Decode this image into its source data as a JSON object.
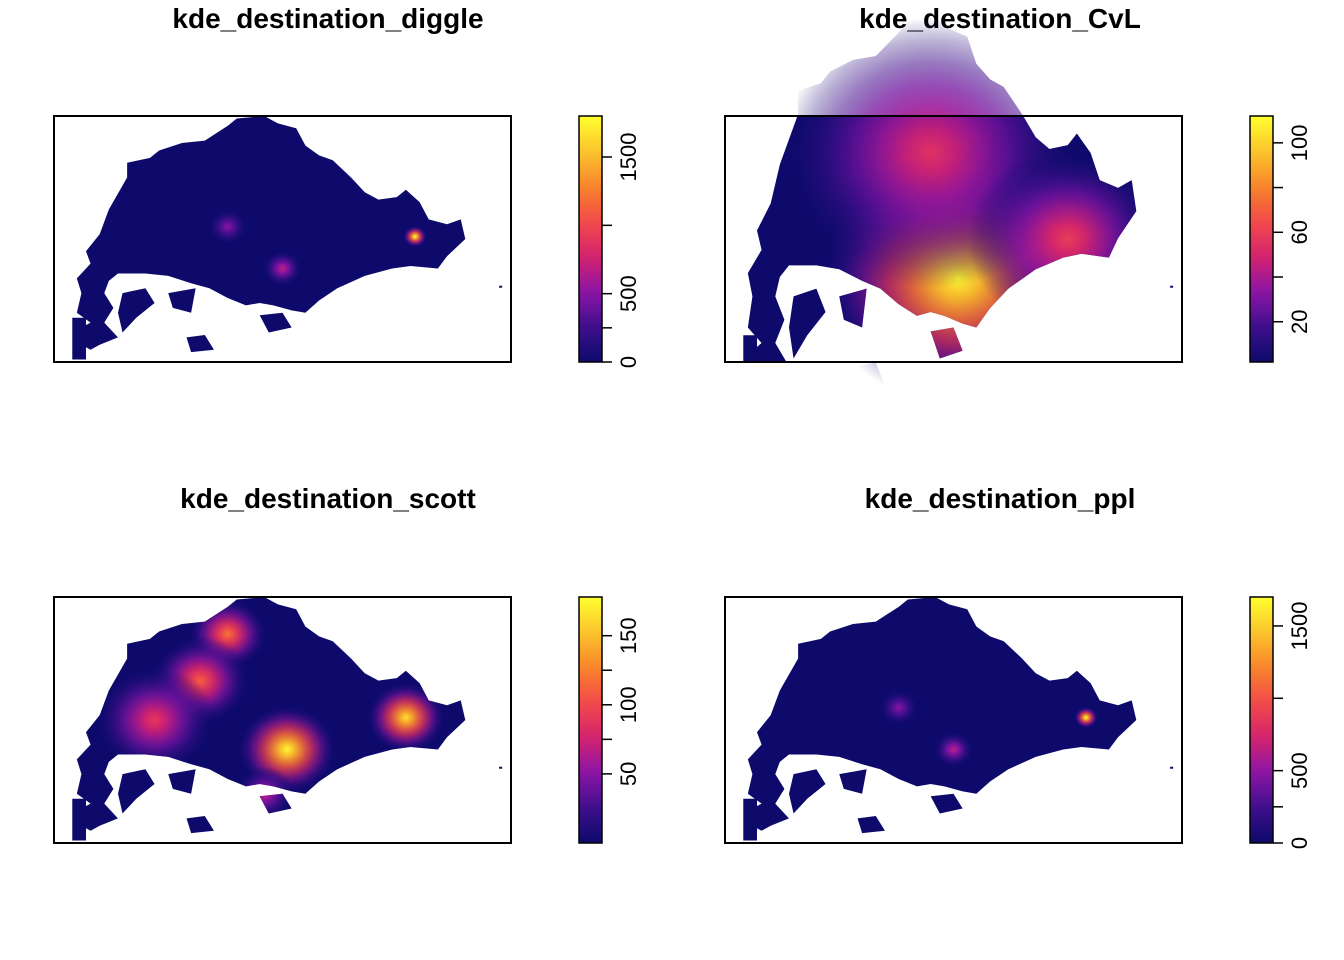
{
  "chart_data": [
    {
      "type": "heatmap",
      "title": "kde_destination_diggle",
      "legend_ticks": [
        0,
        500,
        1500
      ],
      "scale_range": [
        0,
        1800
      ],
      "color_palette": [
        "#0d0a6b",
        "#3e0f8c",
        "#8b14a6",
        "#d5236e",
        "#f24a4a",
        "#f8852a",
        "#fbc52d",
        "#ffff2e"
      ],
      "hotspots": [
        {
          "cx": 0.79,
          "cy": 0.49,
          "value": 1800,
          "spread": 0.012
        },
        {
          "cx": 0.5,
          "cy": 0.62,
          "value": 700,
          "spread": 0.02
        },
        {
          "cx": 0.38,
          "cy": 0.45,
          "value": 500,
          "spread": 0.02
        }
      ]
    },
    {
      "type": "heatmap",
      "title": "kde_destination_CvL",
      "legend_ticks": [
        20,
        60,
        100
      ],
      "scale_range": [
        2,
        112
      ],
      "color_palette": [
        "#0d0a6b",
        "#3e0f8c",
        "#8b14a6",
        "#d5236e",
        "#f24a4a",
        "#f8852a",
        "#fbc52d",
        "#ffff2e"
      ],
      "hotspots": [
        {
          "cx": 0.51,
          "cy": 0.66,
          "value": 110,
          "spread": 0.14
        },
        {
          "cx": 0.45,
          "cy": 0.15,
          "value": 55,
          "spread": 0.15
        },
        {
          "cx": 0.75,
          "cy": 0.5,
          "value": 60,
          "spread": 0.1
        }
      ]
    },
    {
      "type": "heatmap",
      "title": "kde_destination_scott",
      "legend_ticks": [
        50,
        100,
        150
      ],
      "scale_range": [
        0,
        178
      ],
      "color_palette": [
        "#0d0a6b",
        "#3e0f8c",
        "#8b14a6",
        "#d5236e",
        "#f24a4a",
        "#f8852a",
        "#fbc52d",
        "#ffff2e"
      ],
      "hotspots": [
        {
          "cx": 0.51,
          "cy": 0.62,
          "value": 175,
          "spread": 0.05
        },
        {
          "cx": 0.77,
          "cy": 0.49,
          "value": 165,
          "spread": 0.04
        },
        {
          "cx": 0.38,
          "cy": 0.15,
          "value": 120,
          "spread": 0.04
        },
        {
          "cx": 0.32,
          "cy": 0.34,
          "value": 110,
          "spread": 0.05
        },
        {
          "cx": 0.22,
          "cy": 0.5,
          "value": 90,
          "spread": 0.06
        },
        {
          "cx": 0.46,
          "cy": 0.8,
          "value": 70,
          "spread": 0.03
        }
      ]
    },
    {
      "type": "heatmap",
      "title": "kde_destination_ppl",
      "legend_ticks": [
        0,
        500,
        1500
      ],
      "scale_range": [
        0,
        1700
      ],
      "color_palette": [
        "#0d0a6b",
        "#3e0f8c",
        "#8b14a6",
        "#d5236e",
        "#f24a4a",
        "#f8852a",
        "#fbc52d",
        "#ffff2e"
      ],
      "hotspots": [
        {
          "cx": 0.79,
          "cy": 0.49,
          "value": 1700,
          "spread": 0.012
        },
        {
          "cx": 0.5,
          "cy": 0.62,
          "value": 650,
          "spread": 0.02
        },
        {
          "cx": 0.38,
          "cy": 0.45,
          "value": 480,
          "spread": 0.02
        }
      ]
    }
  ]
}
